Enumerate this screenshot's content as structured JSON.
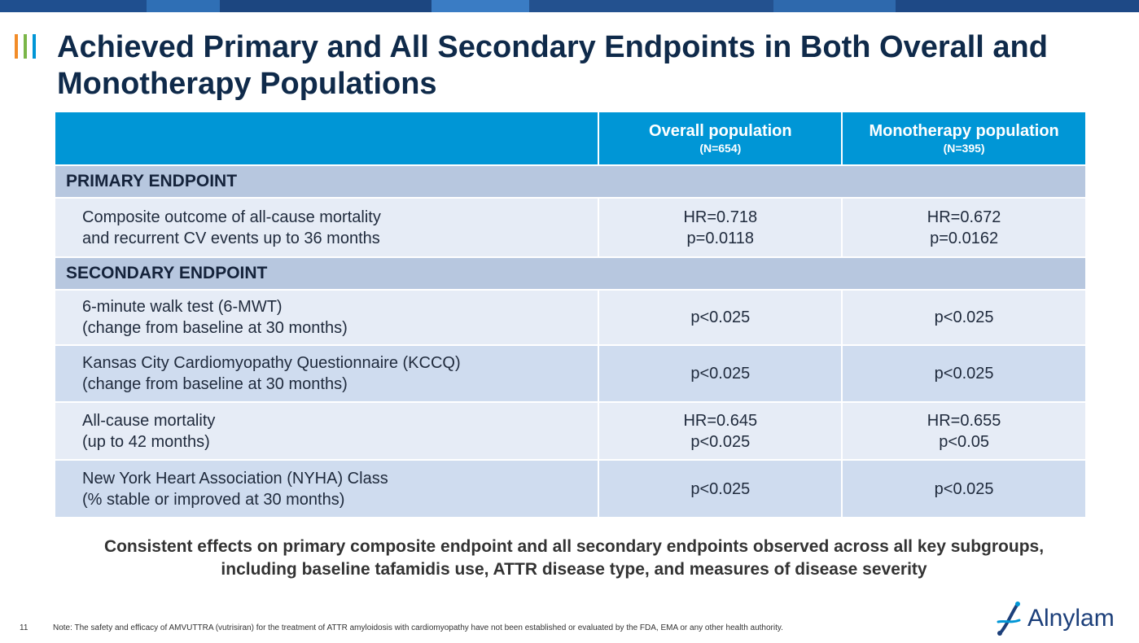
{
  "colors": {
    "header_bg": "#0096d6",
    "section_bg": "#b7c7df",
    "row_light": "#e6ecf6",
    "row_mid": "#cfdcef",
    "title_color": "#0f2a4a",
    "mark_orange": "#f28c28",
    "mark_green": "#7ab648",
    "mark_blue": "#0096d6"
  },
  "slide": {
    "title": "Achieved Primary and All Secondary Endpoints in Both Overall and Monotherapy Populations",
    "page_number": "11",
    "note": "Note: The safety and efficacy of AMVUTTRA (vutrisiran) for the treatment of ATTR amyloidosis with cardiomyopathy have not been established or evaluated by the FDA, EMA or any other health authority.",
    "summary": "Consistent effects on primary composite endpoint and all secondary endpoints observed across all key subgroups, including baseline tafamidis use, ATTR disease type, and measures of disease severity",
    "logo_text": "Alnylam",
    "logo_icon": "alnylam-helix-icon"
  },
  "table": {
    "header": {
      "col1_name": "Overall population",
      "col1_n": "(N=654)",
      "col2_name": "Monotherapy population",
      "col2_n": "(N=395)"
    },
    "primary_section": "PRIMARY ENDPOINT",
    "secondary_section": "SECONDARY ENDPOINT",
    "primary": {
      "label_line1": "Composite outcome of all-cause mortality",
      "label_line2": "and recurrent CV events up to 36 months",
      "overall_line1": "HR=0.718",
      "overall_line2": "p=0.0118",
      "mono_line1": "HR=0.672",
      "mono_line2": "p=0.0162"
    },
    "secondary": [
      {
        "label_line1": "6-minute walk test (6-MWT)",
        "label_line2": "(change from baseline at 30 months)",
        "overall_line1": "p<0.025",
        "overall_line2": "",
        "mono_line1": "p<0.025",
        "mono_line2": ""
      },
      {
        "label_line1": "Kansas City Cardiomyopathy Questionnaire (KCCQ)",
        "label_line2": "(change from baseline at 30 months)",
        "overall_line1": "p<0.025",
        "overall_line2": "",
        "mono_line1": "p<0.025",
        "mono_line2": ""
      },
      {
        "label_line1": "All-cause mortality",
        "label_line2": "(up to 42 months)",
        "overall_line1": "HR=0.645",
        "overall_line2": "p<0.025",
        "mono_line1": "HR=0.655",
        "mono_line2": "p<0.05"
      },
      {
        "label_line1": "New York Heart Association (NYHA) Class",
        "label_line2": "(% stable or improved at 30 months)",
        "overall_line1": "p<0.025",
        "overall_line2": "",
        "mono_line1": "p<0.025",
        "mono_line2": ""
      }
    ]
  }
}
